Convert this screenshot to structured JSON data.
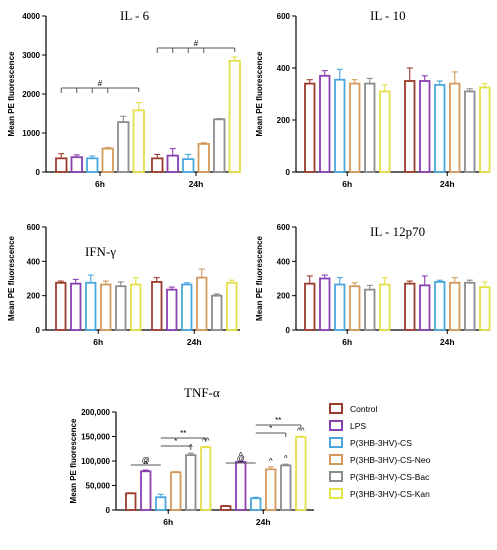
{
  "legend": {
    "entries": [
      {
        "label": "Control",
        "color": "#9b3b2e"
      },
      {
        "label": "LPS",
        "color": "#8a3fb2"
      },
      {
        "label": "P(3HB-3HV)-CS",
        "color": "#4aa7dd"
      },
      {
        "label": "P(3HB-3HV)-CS-Neo",
        "color": "#d49a5c"
      },
      {
        "label": "P(3HB-3HV)-CS-Bac",
        "color": "#8c8c8c"
      },
      {
        "label": "P(3HB-3HV)-CS-Kan",
        "color": "#e3e048"
      }
    ]
  },
  "chart_data": [
    {
      "type": "bar",
      "title": "IL - 6",
      "ylabel": "Mean PE fluorescence",
      "categories": [
        "6h",
        "24h"
      ],
      "ylim": [
        0,
        4000
      ],
      "yticks": [
        "0",
        "1000",
        "2000",
        "3000",
        "4000"
      ],
      "series": [
        {
          "name": "Control",
          "values": [
            350,
            350
          ],
          "errors": [
            120,
            100
          ]
        },
        {
          "name": "LPS",
          "values": [
            380,
            420
          ],
          "errors": [
            60,
            180
          ]
        },
        {
          "name": "P(3HB-3HV)-CS",
          "values": [
            350,
            330
          ],
          "errors": [
            60,
            120
          ]
        },
        {
          "name": "P(3HB-3HV)-CS-Neo",
          "values": [
            600,
            720
          ],
          "errors": [
            30,
            30
          ]
        },
        {
          "name": "P(3HB-3HV)-CS-Bac",
          "values": [
            1280,
            1350
          ],
          "errors": [
            150,
            20
          ]
        },
        {
          "name": "P(3HB-3HV)-CS-Kan",
          "values": [
            1580,
            2850
          ],
          "errors": [
            200,
            100
          ]
        }
      ],
      "annotations": [
        "#",
        "#"
      ]
    },
    {
      "type": "bar",
      "title": "IL - 10",
      "ylabel": "Mean PE fluorescence",
      "categories": [
        "6h",
        "24h"
      ],
      "ylim": [
        0,
        600
      ],
      "yticks": [
        "0",
        "200",
        "400",
        "600"
      ],
      "series": [
        {
          "name": "Control",
          "values": [
            340,
            350
          ],
          "errors": [
            15,
            50
          ]
        },
        {
          "name": "LPS",
          "values": [
            370,
            350
          ],
          "errors": [
            20,
            20
          ]
        },
        {
          "name": "P(3HB-3HV)-CS",
          "values": [
            355,
            335
          ],
          "errors": [
            40,
            15
          ]
        },
        {
          "name": "P(3HB-3HV)-CS-Neo",
          "values": [
            340,
            340
          ],
          "errors": [
            15,
            45
          ]
        },
        {
          "name": "P(3HB-3HV)-CS-Bac",
          "values": [
            340,
            310
          ],
          "errors": [
            20,
            10
          ]
        },
        {
          "name": "P(3HB-3HV)-CS-Kan",
          "values": [
            310,
            325
          ],
          "errors": [
            25,
            15
          ]
        }
      ]
    },
    {
      "type": "bar",
      "title": "IFN-γ",
      "ylabel": "Mean PE fluorescence",
      "categories": [
        "6h",
        "24h"
      ],
      "ylim": [
        0,
        600
      ],
      "yticks": [
        "0",
        "200",
        "400",
        "600"
      ],
      "series": [
        {
          "name": "Control",
          "values": [
            275,
            280
          ],
          "errors": [
            10,
            25
          ]
        },
        {
          "name": "LPS",
          "values": [
            270,
            235
          ],
          "errors": [
            25,
            15
          ]
        },
        {
          "name": "P(3HB-3HV)-CS",
          "values": [
            275,
            265
          ],
          "errors": [
            45,
            10
          ]
        },
        {
          "name": "P(3HB-3HV)-CS-Neo",
          "values": [
            265,
            305
          ],
          "errors": [
            20,
            50
          ]
        },
        {
          "name": "P(3HB-3HV)-CS-Bac",
          "values": [
            255,
            200
          ],
          "errors": [
            25,
            10
          ]
        },
        {
          "name": "P(3HB-3HV)-CS-Kan",
          "values": [
            265,
            275
          ],
          "errors": [
            40,
            15
          ]
        }
      ]
    },
    {
      "type": "bar",
      "title": "IL - 12p70",
      "ylabel": "Mean PE fluorescence",
      "categories": [
        "6h",
        "24h"
      ],
      "ylim": [
        0,
        600
      ],
      "yticks": [
        "0",
        "200",
        "400",
        "600"
      ],
      "series": [
        {
          "name": "Control",
          "values": [
            270,
            270
          ],
          "errors": [
            45,
            15
          ]
        },
        {
          "name": "LPS",
          "values": [
            300,
            260
          ],
          "errors": [
            20,
            55
          ]
        },
        {
          "name": "P(3HB-3HV)-CS",
          "values": [
            265,
            280
          ],
          "errors": [
            40,
            10
          ]
        },
        {
          "name": "P(3HB-3HV)-CS-Neo",
          "values": [
            255,
            275
          ],
          "errors": [
            20,
            30
          ]
        },
        {
          "name": "P(3HB-3HV)-CS-Bac",
          "values": [
            235,
            275
          ],
          "errors": [
            25,
            15
          ]
        },
        {
          "name": "P(3HB-3HV)-CS-Kan",
          "values": [
            265,
            250
          ],
          "errors": [
            40,
            30
          ]
        }
      ]
    },
    {
      "type": "bar",
      "title": "TNF-α",
      "ylabel": "Mean PE fluorescence",
      "categories": [
        "6h",
        "24h"
      ],
      "ylim": [
        0,
        200000
      ],
      "yticks": [
        "0",
        "50,000",
        "100,000",
        "150,000",
        "200,000"
      ],
      "series": [
        {
          "name": "Control",
          "values": [
            34000,
            8000
          ],
          "errors": [
            1000,
            800
          ]
        },
        {
          "name": "LPS",
          "values": [
            79000,
            98000
          ],
          "errors": [
            2500,
            1500
          ]
        },
        {
          "name": "P(3HB-3HV)-CS",
          "values": [
            26000,
            24000
          ],
          "errors": [
            6000,
            2000
          ]
        },
        {
          "name": "P(3HB-3HV)-CS-Neo",
          "values": [
            77000,
            83000
          ],
          "errors": [
            1200,
            5000
          ]
        },
        {
          "name": "P(3HB-3HV)-CS-Bac",
          "values": [
            112000,
            91000
          ],
          "errors": [
            4000,
            2500
          ]
        },
        {
          "name": "P(3HB-3HV)-CS-Kan",
          "values": [
            128000,
            149000
          ],
          "errors": [
            1500,
            1500
          ]
        }
      ],
      "annotations": [
        "@",
        "*",
        "**",
        "^",
        "^^"
      ]
    }
  ]
}
